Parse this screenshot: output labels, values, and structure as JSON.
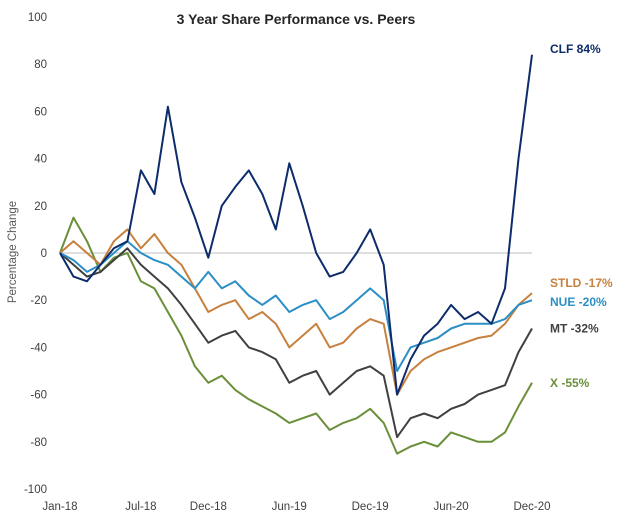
{
  "chart_data": {
    "type": "line",
    "title": "3 Year Share Performance vs. Peers",
    "xlabel": "",
    "ylabel": "Percentage Change",
    "ylim": [
      -100,
      100
    ],
    "yticks": [
      -100,
      -80,
      -60,
      -40,
      -20,
      0,
      20,
      40,
      60,
      80,
      100
    ],
    "xticks": [
      "Jan-18",
      "Jul-18",
      "Dec-18",
      "Jun-19",
      "Dec-19",
      "Jun-20",
      "Dec-20"
    ],
    "grid": false,
    "legend": "inline-end-labels",
    "x": [
      "Jan-18",
      "Feb-18",
      "Mar-18",
      "Apr-18",
      "May-18",
      "Jun-18",
      "Jul-18",
      "Aug-18",
      "Sep-18",
      "Oct-18",
      "Nov-18",
      "Dec-18",
      "Jan-19",
      "Feb-19",
      "Mar-19",
      "Apr-19",
      "May-19",
      "Jun-19",
      "Jul-19",
      "Aug-19",
      "Sep-19",
      "Oct-19",
      "Nov-19",
      "Dec-19",
      "Jan-20",
      "Feb-20",
      "Mar-20",
      "Apr-20",
      "May-20",
      "Jun-20",
      "Jul-20",
      "Aug-20",
      "Sep-20",
      "Oct-20",
      "Nov-20",
      "Dec-20"
    ],
    "series": [
      {
        "name": "CLF",
        "end_label": "CLF 84%",
        "color": "#0d2c6b",
        "values": [
          0,
          -10,
          -12,
          -5,
          2,
          5,
          35,
          25,
          62,
          30,
          15,
          -2,
          20,
          28,
          35,
          25,
          10,
          38,
          20,
          0,
          -10,
          -8,
          0,
          10,
          -5,
          -60,
          -45,
          -35,
          -30,
          -22,
          -28,
          -25,
          -30,
          -15,
          40,
          84
        ]
      },
      {
        "name": "STLD",
        "end_label": "STLD -17%",
        "color": "#c8803e",
        "values": [
          0,
          5,
          0,
          -5,
          5,
          10,
          2,
          8,
          0,
          -5,
          -15,
          -25,
          -22,
          -20,
          -28,
          -25,
          -30,
          -40,
          -35,
          -30,
          -40,
          -38,
          -32,
          -28,
          -30,
          -60,
          -50,
          -45,
          -42,
          -40,
          -38,
          -36,
          -35,
          -30,
          -22,
          -17
        ]
      },
      {
        "name": "NUE",
        "end_label": "NUE -20%",
        "color": "#2b8fc6",
        "values": [
          0,
          -3,
          -8,
          -5,
          0,
          5,
          0,
          -3,
          -5,
          -10,
          -15,
          -8,
          -15,
          -12,
          -18,
          -22,
          -18,
          -25,
          -22,
          -20,
          -28,
          -25,
          -20,
          -15,
          -20,
          -50,
          -40,
          -38,
          -36,
          -32,
          -30,
          -30,
          -30,
          -28,
          -22,
          -20
        ]
      },
      {
        "name": "MT",
        "end_label": "MT -32%",
        "color": "#404040",
        "values": [
          0,
          -5,
          -10,
          -8,
          -3,
          2,
          -5,
          -10,
          -15,
          -22,
          -30,
          -38,
          -35,
          -33,
          -40,
          -42,
          -45,
          -55,
          -52,
          -50,
          -60,
          -55,
          -50,
          -48,
          -52,
          -78,
          -70,
          -68,
          -70,
          -66,
          -64,
          -60,
          -58,
          -56,
          -42,
          -32
        ]
      },
      {
        "name": "X",
        "end_label": "X -55%",
        "color": "#6a8f3a",
        "values": [
          0,
          15,
          5,
          -8,
          -2,
          0,
          -12,
          -15,
          -25,
          -35,
          -48,
          -55,
          -52,
          -58,
          -62,
          -65,
          -68,
          -72,
          -70,
          -68,
          -75,
          -72,
          -70,
          -66,
          -72,
          -85,
          -82,
          -80,
          -82,
          -76,
          -78,
          -80,
          -80,
          -76,
          -65,
          -55
        ]
      }
    ]
  }
}
